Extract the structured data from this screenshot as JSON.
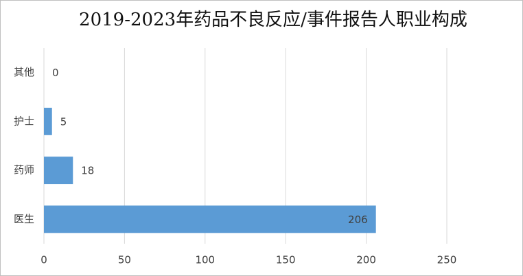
{
  "chart_data": {
    "type": "hbar",
    "title": "2019-2023年药品不良反应/事件报告人职业构成",
    "categories": [
      "其他",
      "护士",
      "药师",
      "医生"
    ],
    "values": [
      0,
      5,
      18,
      206
    ],
    "color": "#5b9bd5",
    "xlim": [
      0,
      250
    ],
    "xticks": [
      0,
      50,
      100,
      150,
      200,
      250
    ],
    "grid": true
  }
}
